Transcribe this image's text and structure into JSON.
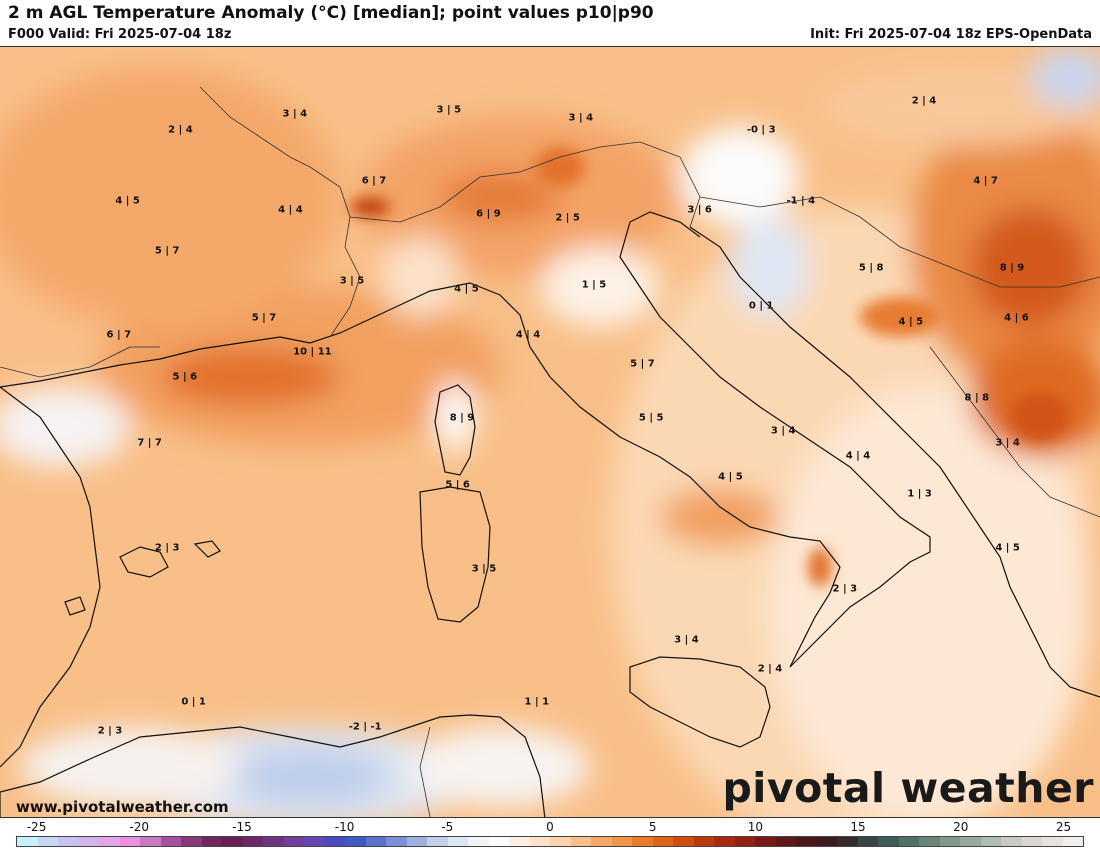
{
  "header": {
    "title": "2 m AGL Temperature Anomaly (°C) [median]; point values p10|p90",
    "valid": "F000 Valid: Fri 2025-07-04 18z",
    "init": "Init: Fri 2025-07-04 18z EPS-OpenData"
  },
  "point_values": [
    {
      "text": "2 | 4",
      "lon": 3.1,
      "lat": 47.5
    },
    {
      "text": "3 | 4",
      "lon": 5.7,
      "lat": 47.9
    },
    {
      "text": "3 | 5",
      "lon": 9.2,
      "lat": 48.0
    },
    {
      "text": "3 | 4",
      "lon": 12.2,
      "lat": 47.8
    },
    {
      "text": "-0 | 3",
      "lon": 16.3,
      "lat": 47.5
    },
    {
      "text": "2 | 4",
      "lon": 20.0,
      "lat": 48.2
    },
    {
      "text": "4 | 5",
      "lon": 1.9,
      "lat": 45.8
    },
    {
      "text": "4 | 4",
      "lon": 5.6,
      "lat": 45.6
    },
    {
      "text": "6 | 7",
      "lon": 7.5,
      "lat": 46.3
    },
    {
      "text": "6 | 9",
      "lon": 10.1,
      "lat": 45.5
    },
    {
      "text": "2 | 5",
      "lon": 11.9,
      "lat": 45.4
    },
    {
      "text": "3 | 6",
      "lon": 14.9,
      "lat": 45.6
    },
    {
      "text": "-1 | 4",
      "lon": 17.2,
      "lat": 45.8
    },
    {
      "text": "4 | 7",
      "lon": 21.4,
      "lat": 46.3
    },
    {
      "text": "5 | 7",
      "lon": 2.8,
      "lat": 44.6
    },
    {
      "text": "5 | 8",
      "lon": 18.8,
      "lat": 44.2
    },
    {
      "text": "8 | 9",
      "lon": 22.0,
      "lat": 44.2
    },
    {
      "text": "3 | 5",
      "lon": 7.0,
      "lat": 43.9
    },
    {
      "text": "1 | 5",
      "lon": 12.5,
      "lat": 43.8
    },
    {
      "text": "4 | 5",
      "lon": 9.6,
      "lat": 43.7
    },
    {
      "text": "0 | 1",
      "lon": 16.3,
      "lat": 43.3
    },
    {
      "text": "6 | 7",
      "lon": 1.7,
      "lat": 42.6
    },
    {
      "text": "5 | 7",
      "lon": 5.0,
      "lat": 43.0
    },
    {
      "text": "4 | 4",
      "lon": 11.0,
      "lat": 42.6
    },
    {
      "text": "4 | 5",
      "lon": 19.7,
      "lat": 42.9
    },
    {
      "text": "4 | 6",
      "lon": 22.1,
      "lat": 43.0
    },
    {
      "text": "10 | 11",
      "lon": 6.1,
      "lat": 42.2
    },
    {
      "text": "5 | 7",
      "lon": 13.6,
      "lat": 41.9
    },
    {
      "text": "5 | 6",
      "lon": 3.2,
      "lat": 41.6
    },
    {
      "text": "8 | 8",
      "lon": 21.2,
      "lat": 41.1
    },
    {
      "text": "8 | 9",
      "lon": 9.5,
      "lat": 40.6
    },
    {
      "text": "5 | 5",
      "lon": 13.8,
      "lat": 40.6
    },
    {
      "text": "3 | 4",
      "lon": 16.8,
      "lat": 40.3
    },
    {
      "text": "7 | 7",
      "lon": 2.4,
      "lat": 40.0
    },
    {
      "text": "3 | 4",
      "lon": 21.9,
      "lat": 40.0
    },
    {
      "text": "4 | 4",
      "lon": 18.5,
      "lat": 39.7
    },
    {
      "text": "4 | 5",
      "lon": 15.6,
      "lat": 39.2
    },
    {
      "text": "5 | 6",
      "lon": 9.4,
      "lat": 39.0
    },
    {
      "text": "1 | 3",
      "lon": 19.9,
      "lat": 38.8
    },
    {
      "text": "2 | 3",
      "lon": 2.8,
      "lat": 37.5
    },
    {
      "text": "4 | 5",
      "lon": 21.9,
      "lat": 37.5
    },
    {
      "text": "3 | 5",
      "lon": 10.0,
      "lat": 37.0
    },
    {
      "text": "2 | 3",
      "lon": 18.2,
      "lat": 36.5
    },
    {
      "text": "3 | 4",
      "lon": 14.6,
      "lat": 35.3
    },
    {
      "text": "2 | 4",
      "lon": 16.5,
      "lat": 34.6
    },
    {
      "text": "0 | 1",
      "lon": 3.4,
      "lat": 33.8
    },
    {
      "text": "1 | 1",
      "lon": 11.2,
      "lat": 33.8
    },
    {
      "text": "2 | 3",
      "lon": 1.5,
      "lat": 33.1
    },
    {
      "text": "-2 | -1",
      "lon": 7.3,
      "lat": 33.2
    }
  ],
  "colorbar": {
    "tick_labels": [
      "-25",
      "-20",
      "-15",
      "-10",
      "-5",
      "0",
      "5",
      "10",
      "15",
      "20",
      "25"
    ],
    "min": -26,
    "max": 26,
    "colors": [
      "#c6f3fb",
      "#c9d7f4",
      "#c8c2ee",
      "#d2b3ec",
      "#e3a4ec",
      "#e88fe2",
      "#c978c4",
      "#a5509e",
      "#893779",
      "#74255b",
      "#681f52",
      "#6c2768",
      "#6d3380",
      "#6f3e9b",
      "#6247b5",
      "#4a4bc2",
      "#3f59c7",
      "#5b73cc",
      "#7d8fd5",
      "#a0b1de",
      "#c2cfe8",
      "#dde6f2",
      "#f0f3f8",
      "#fcfcfc",
      "#fdf0e4",
      "#fce2cb",
      "#fbd2ad",
      "#f9bf88",
      "#f7a865",
      "#f39347",
      "#ec7a2b",
      "#e06318",
      "#d14d0e",
      "#bd390c",
      "#a8290e",
      "#922114",
      "#7a1a18",
      "#62161a",
      "#4c171b",
      "#3d1c20",
      "#362a2c",
      "#394545",
      "#3e5b58",
      "#507167",
      "#6a8478",
      "#829889",
      "#9aa99c",
      "#b2bbb1",
      "#c9cac4",
      "#dcd6d3",
      "#e8e2df",
      "#f1efee"
    ]
  },
  "branding": {
    "website": "www.pivotalweather.com",
    "logo": "pivotal weather"
  }
}
